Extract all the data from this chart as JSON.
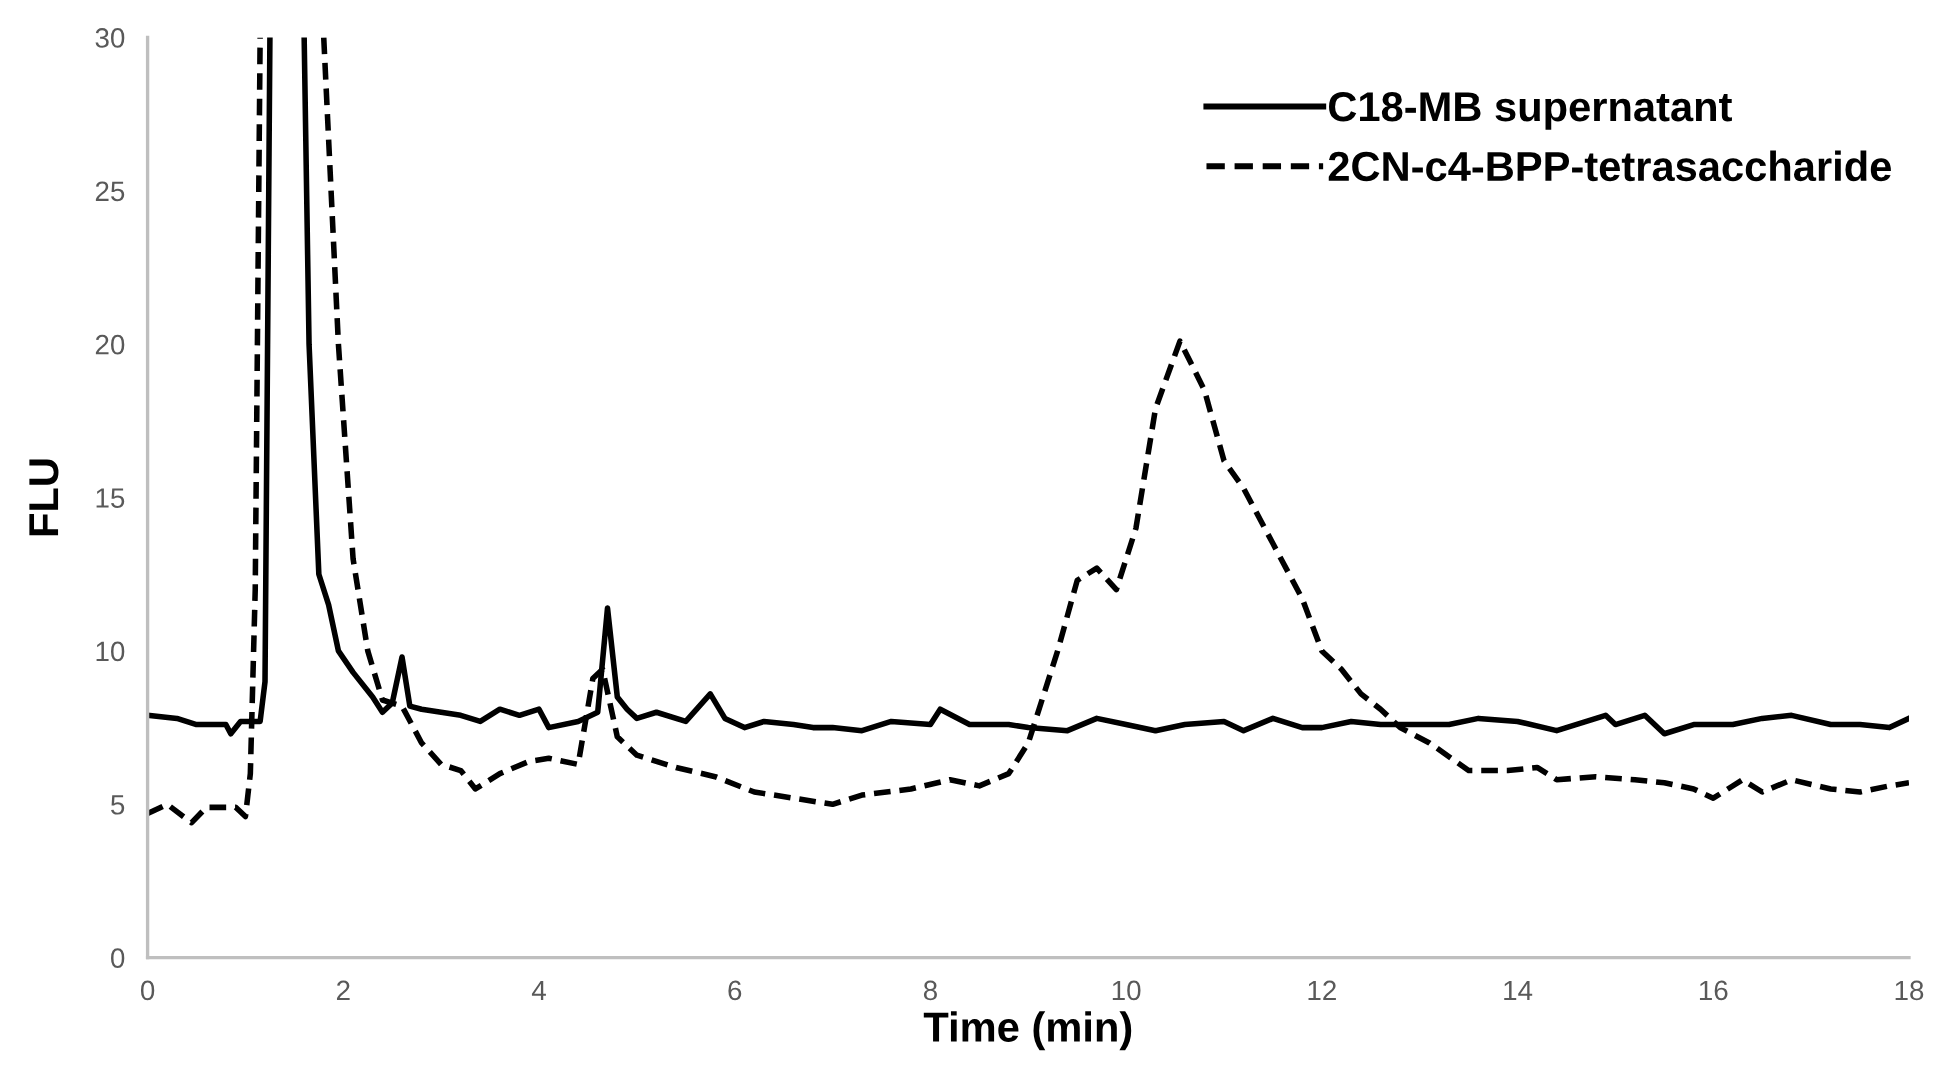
{
  "chart_data": {
    "type": "line",
    "xlabel": "Time (min)",
    "ylabel": "FLU",
    "xlim": [
      0,
      18
    ],
    "xticks": [
      0,
      2,
      4,
      6,
      8,
      10,
      12,
      14,
      16,
      18
    ],
    "ylim": [
      0,
      30
    ],
    "yticks": [
      0,
      5,
      10,
      15,
      20,
      25,
      30
    ],
    "grid": false,
    "legend": "top right",
    "marker": "none",
    "series": [
      {
        "name": "C18-MB supernatant",
        "color": "#000000",
        "line_style": "solid",
        "x": [
          0,
          0.3,
          0.5,
          0.8,
          0.85,
          0.95,
          1.15,
          1.2,
          1.25,
          1.4,
          1.6,
          1.65,
          1.75,
          1.85,
          1.95,
          2.1,
          2.3,
          2.4,
          2.5,
          2.6,
          2.68,
          2.8,
          3.0,
          3.2,
          3.4,
          3.6,
          3.8,
          4.0,
          4.1,
          4.4,
          4.6,
          4.7,
          4.8,
          4.9,
          5.0,
          5.2,
          5.5,
          5.75,
          5.9,
          6.1,
          6.3,
          6.6,
          6.8,
          7.0,
          7.3,
          7.6,
          8.0,
          8.1,
          8.4,
          8.8,
          9.0,
          9.4,
          9.7,
          10.0,
          10.3,
          10.6,
          11.0,
          11.2,
          11.5,
          11.8,
          12.0,
          12.3,
          12.6,
          13.0,
          13.3,
          13.6,
          14.0,
          14.4,
          14.9,
          15.0,
          15.3,
          15.5,
          15.8,
          16.2,
          16.5,
          16.8,
          17.2,
          17.5,
          17.8,
          18
        ],
        "values": [
          7.9,
          7.8,
          7.6,
          7.6,
          7.3,
          7.7,
          7.7,
          9,
          30,
          null,
          30,
          20,
          12.5,
          11.5,
          10,
          9.3,
          8.5,
          8,
          8.3,
          9.8,
          8.2,
          8.1,
          8.0,
          7.9,
          7.7,
          8.1,
          7.9,
          8.1,
          7.5,
          7.7,
          8.0,
          11.4,
          8.5,
          8.1,
          7.8,
          8.0,
          7.7,
          8.6,
          7.8,
          7.5,
          7.7,
          7.6,
          7.5,
          7.5,
          7.4,
          7.7,
          7.6,
          8.1,
          7.6,
          7.6,
          7.5,
          7.4,
          7.8,
          7.6,
          7.4,
          7.6,
          7.7,
          7.4,
          7.8,
          7.5,
          7.5,
          7.7,
          7.6,
          7.6,
          7.6,
          7.8,
          7.7,
          7.4,
          7.9,
          7.6,
          7.9,
          7.3,
          7.6,
          7.6,
          7.8,
          7.9,
          7.6,
          7.6,
          7.5,
          7.8
        ]
      },
      {
        "name": "2CN-c4-BPP-tetrasaccharide",
        "color": "#000000",
        "line_style": "dashed",
        "x": [
          0,
          0.2,
          0.45,
          0.6,
          0.9,
          1.0,
          1.05,
          1.1,
          1.15,
          1.5,
          1.8,
          1.95,
          2.1,
          2.25,
          2.4,
          2.6,
          2.8,
          3.0,
          3.2,
          3.35,
          3.6,
          3.9,
          4.1,
          4.4,
          4.55,
          4.65,
          4.8,
          5.0,
          5.4,
          5.8,
          6.2,
          6.6,
          7.0,
          7.3,
          7.8,
          8.2,
          8.5,
          8.8,
          9.0,
          9.3,
          9.5,
          9.7,
          9.9,
          10.1,
          10.3,
          10.55,
          10.8,
          11.0,
          11.2,
          11.5,
          11.8,
          12.0,
          12.2,
          12.4,
          12.6,
          12.8,
          13.1,
          13.5,
          13.9,
          14.2,
          14.4,
          14.8,
          15.2,
          15.5,
          15.8,
          16.0,
          16.3,
          16.5,
          16.8,
          17.2,
          17.5,
          17.8,
          18
        ],
        "values": [
          4.7,
          5.0,
          4.4,
          4.9,
          4.9,
          4.6,
          6,
          12,
          30,
          null,
          30,
          20,
          13,
          10,
          8.4,
          8.2,
          7,
          6.3,
          6.1,
          5.5,
          6.0,
          6.4,
          6.5,
          6.3,
          9.1,
          9.4,
          7.2,
          6.6,
          6.2,
          5.9,
          5.4,
          5.2,
          5.0,
          5.3,
          5.5,
          5.8,
          5.6,
          6.0,
          7.0,
          10,
          12.3,
          12.7,
          12.0,
          14,
          17.9,
          20.1,
          18.5,
          16.2,
          15.3,
          13.5,
          11.7,
          10,
          9.4,
          8.6,
          8.1,
          7.5,
          7,
          6.1,
          6.1,
          6.2,
          5.8,
          5.9,
          5.8,
          5.7,
          5.5,
          5.2,
          5.8,
          5.4,
          5.8,
          5.5,
          5.4,
          5.6,
          5.7
        ]
      }
    ]
  }
}
